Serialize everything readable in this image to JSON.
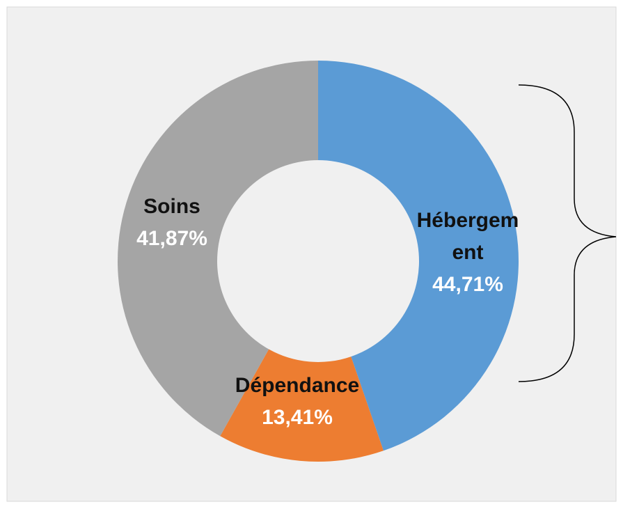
{
  "chart_data": {
    "type": "donut",
    "categories": [
      "Hébergement",
      "Dépendance",
      "Soins"
    ],
    "values": [
      44.71,
      13.41,
      41.87
    ],
    "value_labels": [
      "44,71%",
      "13,41%",
      "41,87%"
    ],
    "colors": [
      "#5b9bd5",
      "#ed7d31",
      "#a5a5a5"
    ]
  }
}
